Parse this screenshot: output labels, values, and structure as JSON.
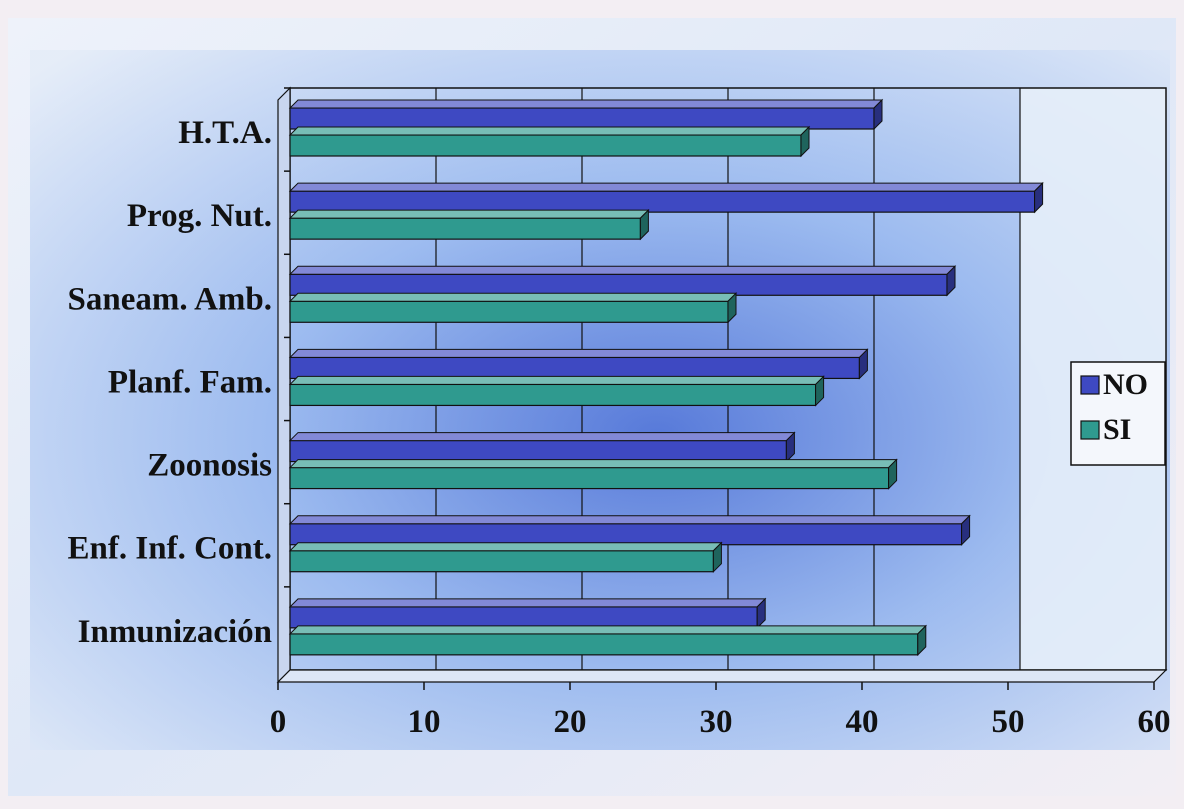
{
  "chart_data": {
    "type": "bar",
    "orientation": "horizontal",
    "categories": [
      "H.T.A.",
      "Prog. Nut.",
      "Saneam. Amb.",
      "Planf. Fam.",
      "Zoonosis",
      "Enf. Inf. Cont.",
      "Inmunización"
    ],
    "series": [
      {
        "name": "NO",
        "values": [
          40,
          51,
          45,
          39,
          34,
          46,
          32
        ]
      },
      {
        "name": "SI",
        "values": [
          35,
          24,
          30,
          36,
          41,
          29,
          43
        ]
      }
    ],
    "xlim": [
      0,
      60
    ],
    "xticks": [
      "0",
      "10",
      "20",
      "30",
      "40",
      "50",
      "60"
    ],
    "legend_position": "right",
    "grid": true,
    "colors": {
      "NO": "#3e49c2",
      "SI": "#2f9a8f",
      "background_outer": "#f3eef3",
      "background_inner": "#aecbf3"
    }
  }
}
